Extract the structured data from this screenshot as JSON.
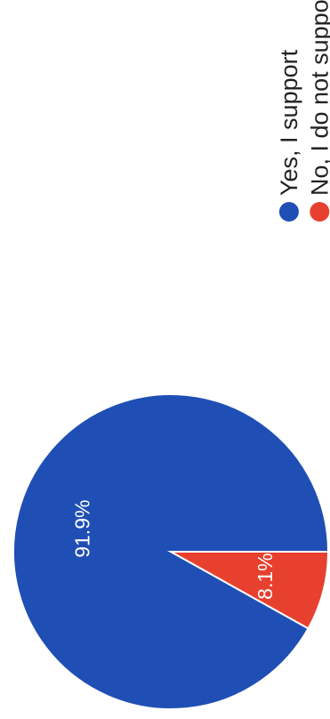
{
  "chart_data": {
    "type": "pie",
    "title": "",
    "categories": [
      "Yes, I support",
      "No, I do not support"
    ],
    "values": [
      91.9,
      8.1
    ],
    "value_labels": [
      "91.9%",
      "8.1%"
    ],
    "colors": [
      "#1f4fb4",
      "#e8402e"
    ],
    "legend": {
      "placement": "right",
      "entries": [
        "Yes, I support",
        "No, I do not support"
      ]
    }
  }
}
